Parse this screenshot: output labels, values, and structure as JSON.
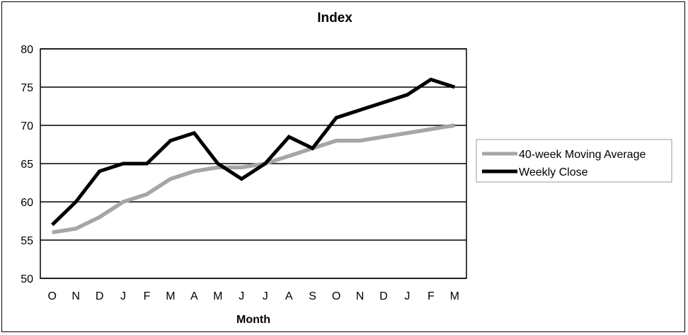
{
  "chart_data": {
    "type": "line",
    "title": "Index",
    "xlabel": "Month",
    "ylabel": "",
    "categories": [
      "O",
      "N",
      "D",
      "J",
      "F",
      "M",
      "A",
      "M",
      "J",
      "J",
      "A",
      "S",
      "O",
      "N",
      "D",
      "J",
      "F",
      "M"
    ],
    "ylim": [
      50,
      80
    ],
    "yticks": [
      50,
      55,
      60,
      65,
      70,
      75,
      80
    ],
    "grid": true,
    "legend_position": "right",
    "series": [
      {
        "name": "40-week Moving Average",
        "color": "#a6a6a6",
        "values": [
          56,
          56.5,
          58,
          60,
          61,
          63,
          64,
          64.5,
          64.5,
          65,
          66,
          67,
          68,
          68,
          68.5,
          69,
          69.5,
          70
        ]
      },
      {
        "name": "Weekly Close",
        "color": "#000000",
        "values": [
          57,
          60,
          64,
          65,
          65,
          68,
          69,
          65,
          63,
          65,
          68.5,
          67,
          71,
          72,
          73,
          74,
          76,
          75
        ]
      }
    ]
  }
}
